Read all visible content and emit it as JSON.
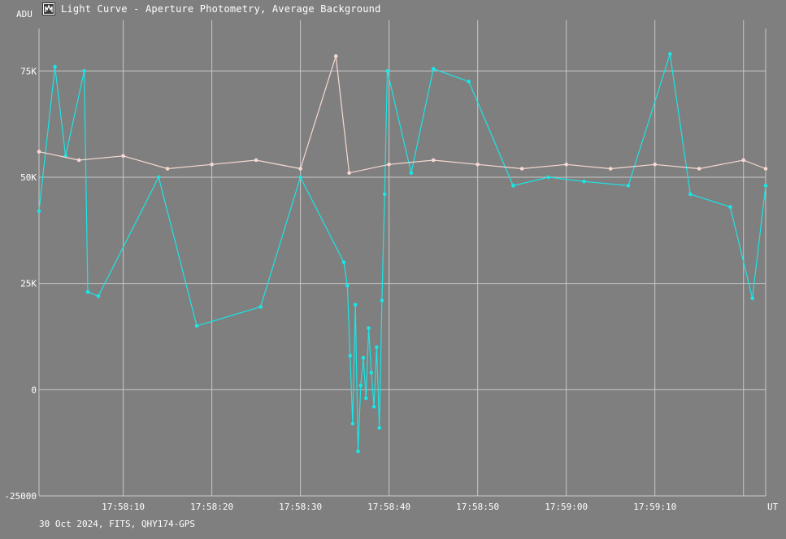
{
  "window": {
    "title": "Light Curve - Aperture Photometry, Average Background",
    "icon": "light-curve-app-icon"
  },
  "footer": {
    "info": "30 Oct 2024, FITS, QHY174-GPS"
  },
  "colors": {
    "background": "#7f7f7f",
    "grid": "#c8c8c8",
    "target_series": "#19e6e6",
    "comparison_series": "#f7d9d2"
  },
  "chart_data": {
    "type": "line",
    "title": "Light Curve - Aperture Photometry, Average Background",
    "ylabel": "ADU",
    "xlabel": "UT",
    "ylim": [
      -25000,
      85000
    ],
    "xlim": [
      "17:58:00.5",
      "17:59:22.5"
    ],
    "y_ticks": [
      {
        "value": -25000,
        "label": "-25000"
      },
      {
        "value": 0,
        "label": "0"
      },
      {
        "value": 25000,
        "label": "25K"
      },
      {
        "value": 50000,
        "label": "50K"
      },
      {
        "value": 75000,
        "label": "75K"
      }
    ],
    "x_ticks": [
      {
        "value": "17:58:10",
        "label": "17:58:10"
      },
      {
        "value": "17:58:20",
        "label": "17:58:20"
      },
      {
        "value": "17:58:30",
        "label": "17:58:30"
      },
      {
        "value": "17:58:40",
        "label": "17:58:40"
      },
      {
        "value": "17:58:50",
        "label": "17:58:50"
      },
      {
        "value": "17:59:00",
        "label": "17:59:00"
      },
      {
        "value": "17:59:10",
        "label": "17:59:10"
      },
      {
        "value": "17:59:20",
        "label": ""
      }
    ],
    "grid": true,
    "legend": "none",
    "series": [
      {
        "color": "#19e6e6",
        "points": [
          [
            "17:58:00.5",
            42000
          ],
          [
            "17:58:02.3",
            76000
          ],
          [
            "17:58:03.5",
            55000
          ],
          [
            "17:58:05.6",
            75000
          ],
          [
            "17:58:06.0",
            23000
          ],
          [
            "17:58:07.2",
            22000
          ],
          [
            "17:58:14.0",
            50000
          ],
          [
            "17:58:18.3",
            15000
          ],
          [
            "17:58:25.5",
            19500
          ],
          [
            "17:58:30.0",
            50000
          ],
          [
            "17:58:34.9",
            30000
          ],
          [
            "17:58:35.3",
            24500
          ],
          [
            "17:58:35.6",
            8000
          ],
          [
            "17:58:35.9",
            -8000
          ],
          [
            "17:58:36.2",
            20000
          ],
          [
            "17:58:36.5",
            -14500
          ],
          [
            "17:58:36.8",
            1000
          ],
          [
            "17:58:37.1",
            7500
          ],
          [
            "17:58:37.4",
            -2000
          ],
          [
            "17:58:37.7",
            14500
          ],
          [
            "17:58:38.0",
            4000
          ],
          [
            "17:58:38.3",
            -4000
          ],
          [
            "17:58:38.6",
            10000
          ],
          [
            "17:58:38.9",
            -9000
          ],
          [
            "17:58:39.2",
            21000
          ],
          [
            "17:58:39.5",
            46000
          ],
          [
            "17:58:39.8",
            75000
          ],
          [
            "17:58:42.5",
            51000
          ],
          [
            "17:58:45.0",
            75500
          ],
          [
            "17:58:49.0",
            72500
          ],
          [
            "17:58:54.0",
            48000
          ],
          [
            "17:58:58.0",
            50000
          ],
          [
            "17:59:02.0",
            49000
          ],
          [
            "17:59:07.0",
            48000
          ],
          [
            "17:59:11.7",
            79000
          ],
          [
            "17:59:14.0",
            46000
          ],
          [
            "17:59:18.5",
            43000
          ],
          [
            "17:59:21.0",
            21500
          ],
          [
            "17:59:22.5",
            48000
          ]
        ]
      },
      {
        "color": "#f7d9d2",
        "points": [
          [
            "17:58:00.5",
            56000
          ],
          [
            "17:58:05.0",
            54000
          ],
          [
            "17:58:10.0",
            55000
          ],
          [
            "17:58:15.0",
            52000
          ],
          [
            "17:58:20.0",
            53000
          ],
          [
            "17:58:25.0",
            54000
          ],
          [
            "17:58:30.0",
            52000
          ],
          [
            "17:58:34.0",
            78500
          ],
          [
            "17:58:35.5",
            51000
          ],
          [
            "17:58:40.0",
            53000
          ],
          [
            "17:58:45.0",
            54000
          ],
          [
            "17:58:50.0",
            53000
          ],
          [
            "17:58:55.0",
            52000
          ],
          [
            "17:59:00.0",
            53000
          ],
          [
            "17:59:05.0",
            52000
          ],
          [
            "17:59:10.0",
            53000
          ],
          [
            "17:59:15.0",
            52000
          ],
          [
            "17:59:20.0",
            54000
          ],
          [
            "17:59:22.5",
            52000
          ]
        ]
      }
    ]
  }
}
